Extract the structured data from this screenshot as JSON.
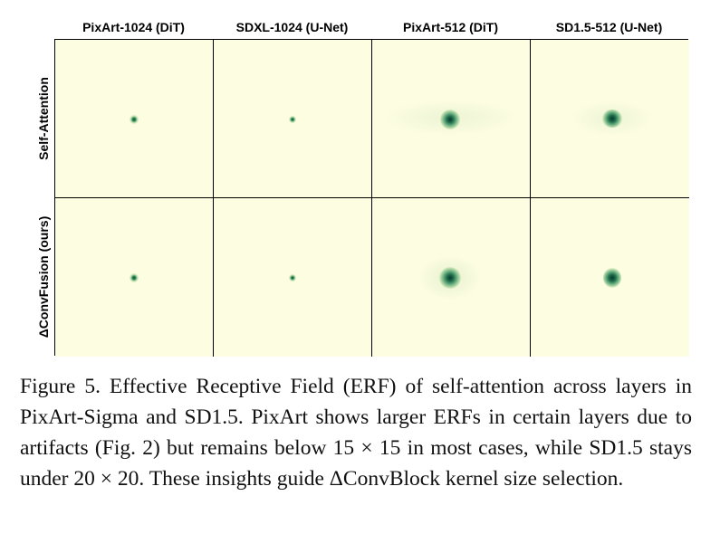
{
  "figure": {
    "column_headers": [
      "PixArt-1024 (DiT)",
      "SDXL-1024 (U-Net)",
      "PixArt-512 (DiT)",
      "SD1.5-512 (U-Net)"
    ],
    "row_labels": [
      "Self-Attention",
      "ΔConvFusion (ours)"
    ],
    "heatmap_background": "#fdfde2",
    "heatmap_peak_color": "#0b4a3a",
    "caption": "Figure 5. Effective Receptive Field (ERF) of self-attention across layers in PixArt-Sigma and SD1.5. PixArt shows larger ERFs in certain layers due to artifacts (Fig. 2) but remains below 15 × 15 in most cases, while SD1.5 stays under 20 × 20. These insights guide ΔConvBlock kernel size selection."
  }
}
